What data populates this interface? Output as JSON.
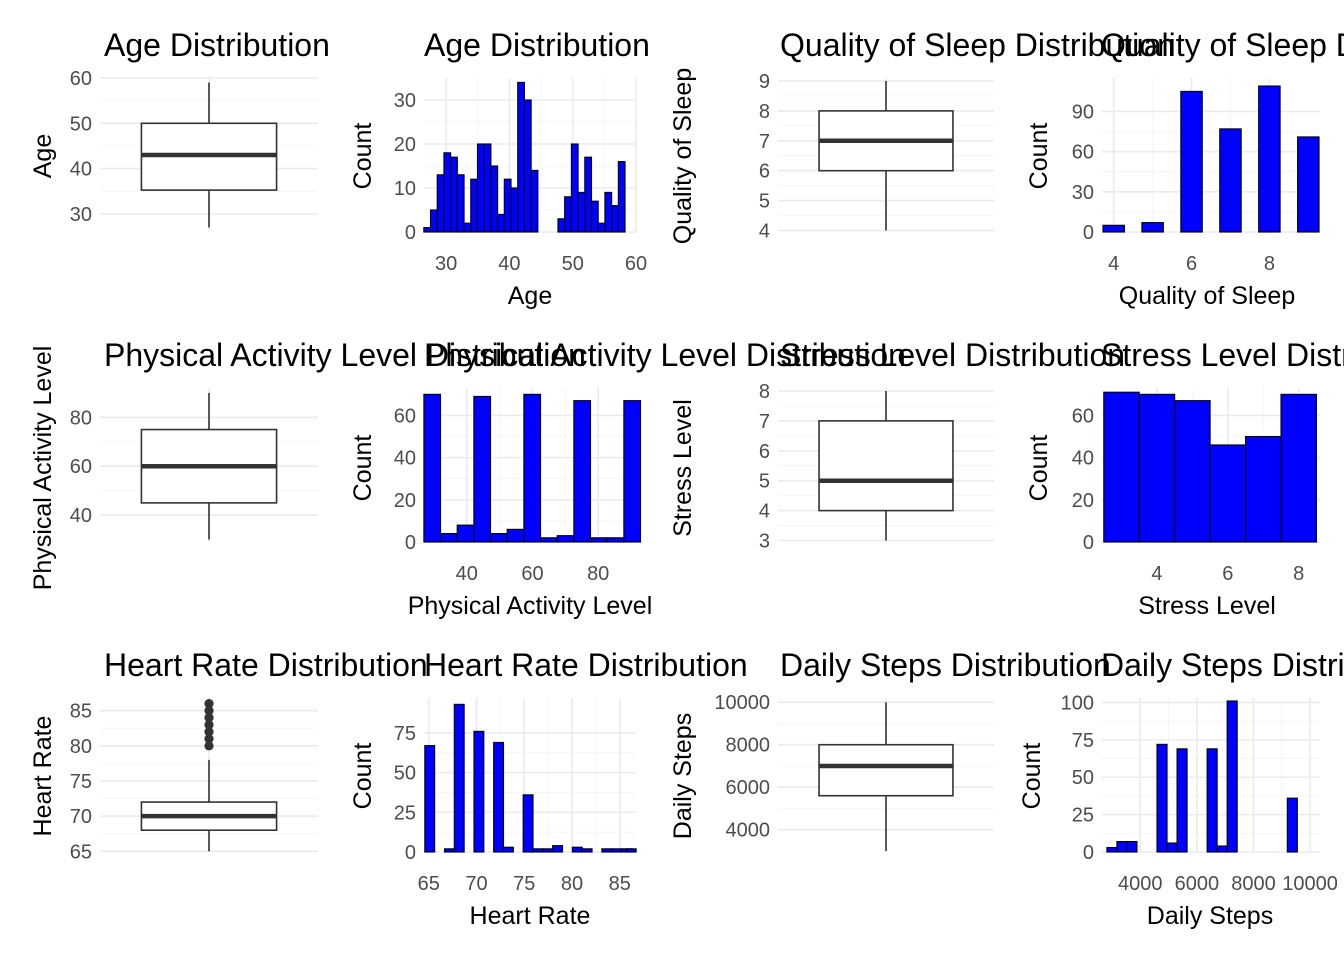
{
  "colors": {
    "bar_fill": "#0000ff",
    "bar_stroke": "#000000",
    "box_stroke": "#333333",
    "grid": "#ebebeb"
  },
  "chart_data": [
    {
      "id": "age-box",
      "type": "boxplot",
      "title": "Age Distribution",
      "ylabel": "Age",
      "ylim": [
        26,
        60
      ],
      "yticks": [
        30,
        40,
        50,
        60
      ],
      "tick_labels": [
        "30",
        "40",
        "50",
        "60"
      ],
      "stats": {
        "min": 27,
        "q1": 35.25,
        "median": 43,
        "q3": 50,
        "max": 59
      },
      "outliers": []
    },
    {
      "id": "age-hist",
      "type": "bar",
      "title": "Age Distribution",
      "xlabel": "Age",
      "ylabel": "Count",
      "xlim": [
        26.5,
        60
      ],
      "ylim": [
        0,
        35
      ],
      "xticks": [
        30,
        40,
        50,
        60
      ],
      "xtick_labels": [
        "30",
        "40",
        "50",
        "60"
      ],
      "yticks": [
        0,
        10,
        20,
        30
      ],
      "ytick_labels": [
        "0",
        "10",
        "20",
        "30"
      ],
      "binwidth": 1.06,
      "x": [
        27,
        28.06,
        29.12,
        30.18,
        31.24,
        32.3,
        33.36,
        34.42,
        35.48,
        36.54,
        37.6,
        38.66,
        39.72,
        40.78,
        41.84,
        42.9,
        43.96,
        45.02,
        46.08,
        47.14,
        48.2,
        49.26,
        50.32,
        51.38,
        52.44,
        53.5,
        54.56,
        55.62,
        56.68,
        57.74,
        58.8
      ],
      "values": [
        1,
        5,
        13,
        18,
        17,
        13,
        2,
        12,
        20,
        20,
        15,
        4,
        12,
        10,
        34,
        30,
        14,
        0,
        0,
        0,
        3,
        8,
        20,
        9,
        17,
        7,
        2,
        9,
        6,
        16,
        0
      ]
    },
    {
      "id": "sleep-box",
      "type": "boxplot",
      "title": "Quality of Sleep Distribution",
      "ylabel": "Quality of Sleep",
      "ylim": [
        3.95,
        9.1
      ],
      "yticks": [
        4,
        5,
        6,
        7,
        8,
        9
      ],
      "tick_labels": [
        "4",
        "5",
        "6",
        "7",
        "8",
        "9"
      ],
      "stats": {
        "min": 4,
        "q1": 6,
        "median": 7,
        "q3": 8,
        "max": 9
      },
      "outliers": []
    },
    {
      "id": "sleep-hist",
      "type": "bar",
      "title": "Quality of Sleep Distribution",
      "xlabel": "Quality of Sleep",
      "ylabel": "Count",
      "xlim": [
        3.7,
        9.3
      ],
      "ylim": [
        0,
        115
      ],
      "xticks": [
        4,
        6,
        8
      ],
      "xtick_labels": [
        "4",
        "6",
        "8"
      ],
      "yticks": [
        0,
        30,
        60,
        90
      ],
      "ytick_labels": [
        "0",
        "30",
        "60",
        "90"
      ],
      "binwidth": 0.55,
      "x": [
        4,
        4.55,
        5,
        5.55,
        6,
        6.55,
        7,
        7.55,
        8,
        8.55,
        9
      ],
      "values": [
        5,
        0,
        7,
        0,
        105,
        0,
        77,
        0,
        109,
        0,
        71
      ]
    },
    {
      "id": "activity-box",
      "type": "boxplot",
      "title": "Physical Activity Level Distribution",
      "ylabel": "Physical Activity Level",
      "ylim": [
        29,
        92
      ],
      "yticks": [
        40,
        60,
        80
      ],
      "tick_labels": [
        "40",
        "60",
        "80"
      ],
      "stats": {
        "min": 30,
        "q1": 45,
        "median": 60,
        "q3": 75,
        "max": 90
      },
      "outliers": []
    },
    {
      "id": "activity-hist",
      "type": "bar",
      "title": "Physical Activity Level Distribution",
      "xlabel": "Physical Activity Level",
      "ylabel": "Count",
      "xlim": [
        27,
        91.5
      ],
      "ylim": [
        0,
        73
      ],
      "xticks": [
        40,
        60,
        80
      ],
      "xtick_labels": [
        "40",
        "60",
        "80"
      ],
      "yticks": [
        0,
        20,
        40,
        60
      ],
      "ytick_labels": [
        "0",
        "20",
        "40",
        "60"
      ],
      "binwidth": 5.07,
      "x": [
        29.5,
        34.57,
        39.64,
        44.71,
        49.78,
        54.85,
        59.92,
        64.99,
        70.06,
        75.13,
        80.2,
        85.27,
        90.34
      ],
      "values": [
        70,
        4,
        8,
        69,
        4,
        6,
        70,
        2,
        3,
        67,
        2,
        2,
        67
      ]
    },
    {
      "id": "stress-box",
      "type": "boxplot",
      "title": "Stress Level Distribution",
      "ylabel": "Stress Level",
      "ylim": [
        2.95,
        8.1
      ],
      "yticks": [
        3,
        4,
        5,
        6,
        7,
        8
      ],
      "tick_labels": [
        "3",
        "4",
        "5",
        "6",
        "7",
        "8"
      ],
      "stats": {
        "min": 3,
        "q1": 4,
        "median": 5,
        "q3": 7,
        "max": 8
      },
      "outliers": []
    },
    {
      "id": "stress-hist",
      "type": "bar",
      "title": "Stress Level Distribution",
      "xlabel": "Stress Level",
      "ylabel": "Count",
      "xlim": [
        2.45,
        8.6
      ],
      "ylim": [
        0,
        73
      ],
      "xticks": [
        4,
        6,
        8
      ],
      "xtick_labels": [
        "4",
        "6",
        "8"
      ],
      "yticks": [
        0,
        20,
        40,
        60
      ],
      "ytick_labels": [
        "0",
        "20",
        "40",
        "60"
      ],
      "binwidth": 1,
      "x": [
        3,
        4,
        5,
        6,
        7,
        8
      ],
      "values": [
        71,
        70,
        67,
        46,
        50,
        70
      ]
    },
    {
      "id": "heart-box",
      "type": "boxplot",
      "title": "Heart Rate Distribution",
      "ylabel": "Heart Rate",
      "ylim": [
        64.9,
        86.8
      ],
      "yticks": [
        65,
        70,
        75,
        80,
        85
      ],
      "tick_labels": [
        "65",
        "70",
        "75",
        "80",
        "85"
      ],
      "stats": {
        "min": 65,
        "q1": 68,
        "median": 70,
        "q3": 72,
        "max": 78
      },
      "outliers": [
        80,
        81,
        82,
        83,
        84,
        85,
        86
      ]
    },
    {
      "id": "heart-hist",
      "type": "bar",
      "title": "Heart Rate Distribution",
      "xlabel": "Heart Rate",
      "ylabel": "Count",
      "xlim": [
        64.5,
        86.7
      ],
      "ylim": [
        0,
        97
      ],
      "xticks": [
        65,
        70,
        75,
        80,
        85
      ],
      "xtick_labels": [
        "65",
        "70",
        "75",
        "80",
        "85"
      ],
      "yticks": [
        0,
        25,
        50,
        75
      ],
      "ytick_labels": [
        "0",
        "25",
        "50",
        "75"
      ],
      "binwidth": 1.03,
      "x": [
        65.1,
        66.13,
        67.16,
        68.19,
        69.22,
        70.25,
        71.28,
        72.31,
        73.34,
        74.37,
        75.4,
        76.43,
        77.46,
        78.49,
        79.52,
        80.55,
        81.58,
        82.61,
        83.64,
        84.67,
        85.7,
        86.2
      ],
      "values": [
        67,
        0,
        2,
        93,
        0,
        76,
        0,
        69,
        3,
        0,
        36,
        2,
        2,
        4,
        0,
        3,
        2,
        0,
        2,
        2,
        2,
        2
      ]
    },
    {
      "id": "steps-box",
      "type": "boxplot",
      "title": "Daily Steps Distribution",
      "ylabel": "Daily Steps",
      "ylim": [
        2950,
        10200
      ],
      "yticks": [
        4000,
        6000,
        8000,
        10000
      ],
      "tick_labels": [
        "4000",
        "6000",
        "8000",
        "10000"
      ],
      "stats": {
        "min": 3000,
        "q1": 5600,
        "median": 7000,
        "q3": 8000,
        "max": 10000
      },
      "outliers": []
    },
    {
      "id": "steps-hist",
      "type": "bar",
      "title": "Daily Steps Distribution",
      "xlabel": "Daily Steps",
      "ylabel": "Count",
      "xlim": [
        2650,
        10350
      ],
      "ylim": [
        0,
        103
      ],
      "xticks": [
        4000,
        6000,
        8000,
        10000
      ],
      "xtick_labels": [
        "4000",
        "6000",
        "8000",
        "10000"
      ],
      "yticks": [
        0,
        25,
        50,
        75,
        100
      ],
      "ytick_labels": [
        "0",
        "25",
        "50",
        "75",
        "100"
      ],
      "binwidth": 354,
      "x": [
        3000,
        3354,
        3708,
        4062,
        4416,
        4770,
        5124,
        5478,
        5832,
        6186,
        6540,
        6894,
        7248,
        7602,
        7956,
        8310,
        8664,
        9018,
        9372,
        9726,
        10000
      ],
      "values": [
        3,
        7,
        7,
        0,
        0,
        72,
        6,
        69,
        0,
        0,
        69,
        4,
        101,
        0,
        0,
        0,
        0,
        0,
        36,
        0,
        0
      ]
    }
  ]
}
